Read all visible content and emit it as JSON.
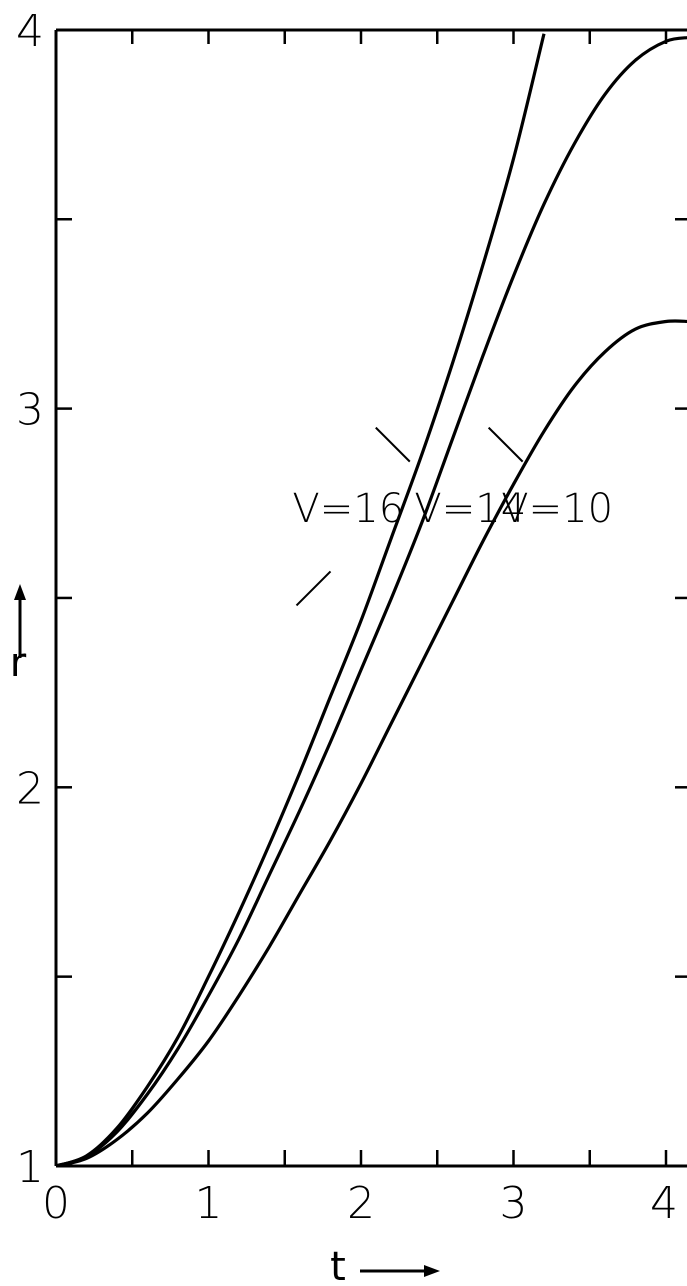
{
  "chart_data": {
    "type": "line",
    "title": "",
    "xlabel": "t",
    "ylabel": "r",
    "xlim": [
      0,
      4.15
    ],
    "ylim": [
      1,
      4
    ],
    "x_ticks": [
      0,
      0.5,
      1,
      1.5,
      2,
      2.5,
      3,
      3.5,
      4
    ],
    "x_tick_labels": [
      "0",
      "1",
      "2",
      "3",
      "4"
    ],
    "x_tick_label_values": [
      0,
      1,
      2,
      3,
      4
    ],
    "y_ticks": [
      1,
      1.5,
      2,
      2.5,
      3,
      3.5,
      4
    ],
    "y_tick_labels": [
      "1",
      "2",
      "3",
      "4"
    ],
    "y_tick_label_values": [
      1,
      2,
      3,
      4
    ],
    "grid": false,
    "legend": "none",
    "series": [
      {
        "name": "V=16",
        "label_position": [
          1.55,
          2.7
        ],
        "label_anchor": [
          1.8,
          2.57
        ],
        "x": [
          0,
          0.2,
          0.4,
          0.6,
          0.8,
          1.0,
          1.2,
          1.4,
          1.6,
          1.8,
          2.0,
          2.2,
          2.4,
          2.6,
          2.8,
          3.0,
          3.2
        ],
        "y": [
          1.0,
          1.027,
          1.1,
          1.21,
          1.34,
          1.5,
          1.67,
          1.85,
          2.04,
          2.24,
          2.44,
          2.66,
          2.88,
          3.12,
          3.38,
          3.66,
          3.99
        ]
      },
      {
        "name": "V=14",
        "label_position": [
          2.35,
          2.7
        ],
        "label_anchor": [
          2.32,
          2.86
        ],
        "x": [
          0,
          0.2,
          0.4,
          0.6,
          0.8,
          1.0,
          1.2,
          1.4,
          1.6,
          1.8,
          2.0,
          2.2,
          2.4,
          2.6,
          2.8,
          3.0,
          3.2,
          3.4,
          3.6,
          3.8,
          4.0,
          4.15
        ],
        "y": [
          1.0,
          1.025,
          1.09,
          1.19,
          1.31,
          1.45,
          1.6,
          1.77,
          1.94,
          2.12,
          2.31,
          2.5,
          2.7,
          2.92,
          3.14,
          3.35,
          3.54,
          3.7,
          3.83,
          3.92,
          3.97,
          3.98
        ]
      },
      {
        "name": "V=10",
        "label_position": [
          2.92,
          2.7
        ],
        "label_anchor": [
          3.06,
          2.86
        ],
        "x": [
          0,
          0.2,
          0.4,
          0.6,
          0.8,
          1.0,
          1.2,
          1.4,
          1.6,
          1.8,
          2.0,
          2.2,
          2.4,
          2.6,
          2.8,
          3.0,
          3.2,
          3.4,
          3.6,
          3.8,
          4.0,
          4.15
        ],
        "y": [
          1.0,
          1.02,
          1.07,
          1.14,
          1.23,
          1.33,
          1.45,
          1.58,
          1.72,
          1.86,
          2.01,
          2.17,
          2.33,
          2.49,
          2.65,
          2.8,
          2.94,
          3.06,
          3.15,
          3.21,
          3.23,
          3.23
        ]
      }
    ]
  }
}
